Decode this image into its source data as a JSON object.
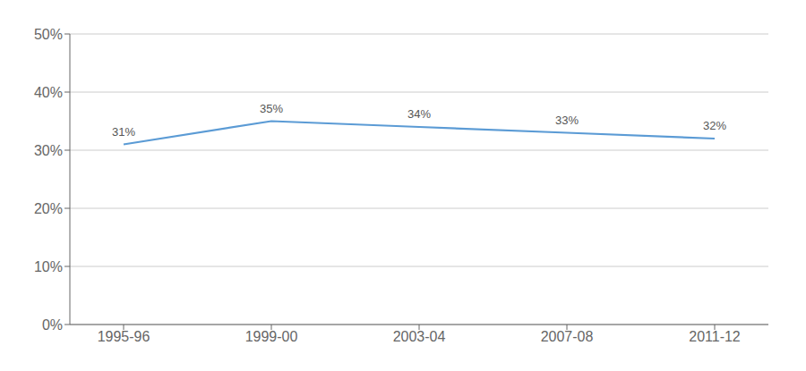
{
  "chart_data": {
    "type": "line",
    "categories": [
      "1995-96",
      "1999-00",
      "2003-04",
      "2007-08",
      "2011-12"
    ],
    "values": [
      0.31,
      0.35,
      0.34,
      0.33,
      0.32
    ],
    "value_labels": [
      "31%",
      "35%",
      "34%",
      "33%",
      "32%"
    ],
    "color": "#5b9bd5",
    "ylim": [
      0,
      0.5
    ],
    "yticks": [
      {
        "value": 0,
        "label": "0%"
      },
      {
        "value": 0.1,
        "label": "10%"
      },
      {
        "value": 0.2,
        "label": "20%"
      },
      {
        "value": 0.3,
        "label": "30%"
      },
      {
        "value": 0.4,
        "label": "40%"
      },
      {
        "value": 0.5,
        "label": "50%"
      }
    ],
    "grid": true,
    "data_labels": true
  }
}
